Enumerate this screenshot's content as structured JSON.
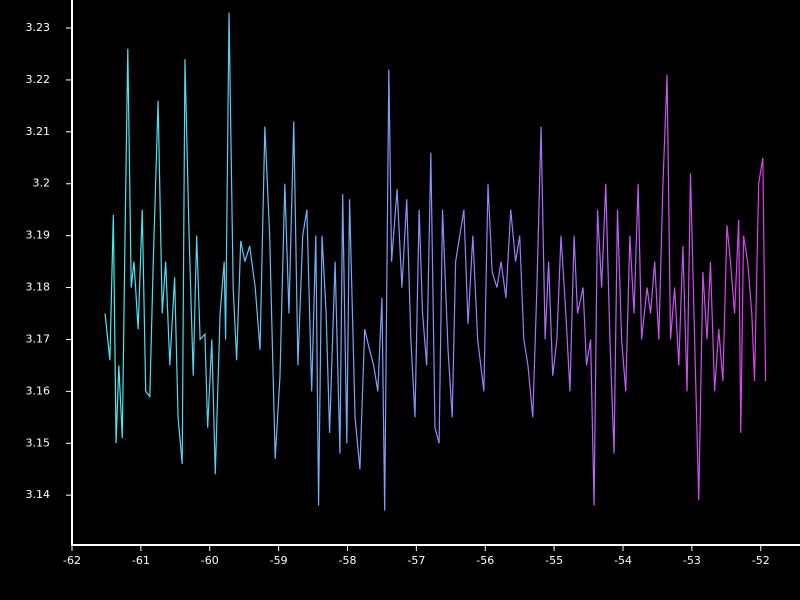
{
  "chart_data": {
    "type": "line",
    "x": [
      -61.52,
      -61.45,
      -61.4,
      -61.36,
      -61.32,
      -61.27,
      -61.23,
      -61.19,
      -61.14,
      -61.1,
      -61.04,
      -60.98,
      -60.93,
      -60.87,
      -60.82,
      -60.75,
      -60.69,
      -60.64,
      -60.58,
      -60.51,
      -60.46,
      -60.4,
      -60.36,
      -60.3,
      -60.24,
      -60.19,
      -60.14,
      -60.07,
      -60.03,
      -59.97,
      -59.92,
      -59.85,
      -59.79,
      -59.77,
      -59.72,
      -59.66,
      -59.61,
      -59.55,
      -59.49,
      -59.42,
      -59.34,
      -59.27,
      -59.2,
      -59.13,
      -59.05,
      -58.98,
      -58.91,
      -58.85,
      -58.78,
      -58.72,
      -58.65,
      -58.59,
      -58.52,
      -58.46,
      -58.42,
      -58.37,
      -58.31,
      -58.26,
      -58.18,
      -58.11,
      -58.07,
      -58.01,
      -57.97,
      -57.89,
      -57.82,
      -57.75,
      -57.68,
      -57.62,
      -57.56,
      -57.5,
      -57.46,
      -57.4,
      -57.36,
      -57.28,
      -57.21,
      -57.14,
      -57.08,
      -57.02,
      -56.96,
      -56.91,
      -56.85,
      -56.79,
      -56.73,
      -56.67,
      -56.62,
      -56.54,
      -56.48,
      -56.43,
      -56.37,
      -56.31,
      -56.25,
      -56.18,
      -56.11,
      -56.02,
      -55.96,
      -55.9,
      -55.83,
      -55.77,
      -55.7,
      -55.63,
      -55.56,
      -55.5,
      -55.44,
      -55.38,
      -55.31,
      -55.25,
      -55.19,
      -55.13,
      -55.08,
      -55.02,
      -54.96,
      -54.9,
      -54.83,
      -54.77,
      -54.71,
      -54.66,
      -54.58,
      -54.53,
      -54.47,
      -54.42,
      -54.37,
      -54.31,
      -54.25,
      -54.19,
      -54.13,
      -54.08,
      -54.02,
      -53.96,
      -53.9,
      -53.84,
      -53.78,
      -53.73,
      -53.65,
      -53.6,
      -53.54,
      -53.48,
      -53.42,
      -53.36,
      -53.31,
      -53.25,
      -53.19,
      -53.13,
      -53.07,
      -53.02,
      -52.96,
      -52.9,
      -52.84,
      -52.78,
      -52.73,
      -52.67,
      -52.61,
      -52.55,
      -52.49,
      -52.44,
      -52.38,
      -52.32,
      -52.29,
      -52.25,
      -52.19,
      -52.13,
      -52.09,
      -52.03,
      -51.97,
      -51.93
    ],
    "values": [
      3.175,
      3.166,
      3.194,
      3.15,
      3.165,
      3.151,
      3.19,
      3.226,
      3.18,
      3.185,
      3.172,
      3.195,
      3.16,
      3.159,
      3.185,
      3.216,
      3.175,
      3.185,
      3.165,
      3.182,
      3.155,
      3.146,
      3.224,
      3.19,
      3.163,
      3.19,
      3.17,
      3.171,
      3.153,
      3.17,
      3.144,
      3.175,
      3.185,
      3.17,
      3.233,
      3.18,
      3.166,
      3.189,
      3.185,
      3.188,
      3.18,
      3.168,
      3.211,
      3.19,
      3.147,
      3.163,
      3.2,
      3.175,
      3.212,
      3.165,
      3.19,
      3.195,
      3.16,
      3.19,
      3.138,
      3.19,
      3.175,
      3.152,
      3.185,
      3.148,
      3.198,
      3.15,
      3.197,
      3.155,
      3.145,
      3.172,
      3.168,
      3.165,
      3.16,
      3.178,
      3.137,
      3.222,
      3.185,
      3.199,
      3.18,
      3.197,
      3.17,
      3.155,
      3.195,
      3.175,
      3.165,
      3.206,
      3.153,
      3.15,
      3.195,
      3.168,
      3.155,
      3.185,
      3.19,
      3.195,
      3.173,
      3.19,
      3.17,
      3.16,
      3.2,
      3.183,
      3.18,
      3.185,
      3.178,
      3.195,
      3.185,
      3.19,
      3.17,
      3.165,
      3.155,
      3.18,
      3.211,
      3.17,
      3.185,
      3.163,
      3.17,
      3.19,
      3.175,
      3.16,
      3.19,
      3.175,
      3.18,
      3.165,
      3.17,
      3.138,
      3.195,
      3.18,
      3.2,
      3.17,
      3.148,
      3.195,
      3.17,
      3.16,
      3.19,
      3.175,
      3.2,
      3.17,
      3.18,
      3.175,
      3.185,
      3.17,
      3.2,
      3.221,
      3.17,
      3.18,
      3.165,
      3.188,
      3.16,
      3.202,
      3.17,
      3.139,
      3.183,
      3.17,
      3.185,
      3.16,
      3.172,
      3.162,
      3.192,
      3.185,
      3.175,
      3.193,
      3.152,
      3.19,
      3.185,
      3.175,
      3.162,
      3.2,
      3.205,
      3.162
    ],
    "colors": [
      "#3ff0f0",
      "#8c8cff",
      "#e23cf0"
    ],
    "xlim": [
      -62,
      -51.43
    ],
    "xticks": [
      -62,
      -61,
      -60,
      -59,
      -58,
      -57,
      -56,
      -55,
      -54,
      -53,
      -52
    ],
    "ylim": [
      3.1304,
      3.2354
    ],
    "yticks": [
      3.14,
      3.15,
      3.16,
      3.17,
      3.18,
      3.19,
      3.2,
      3.21,
      3.22,
      3.23
    ]
  }
}
